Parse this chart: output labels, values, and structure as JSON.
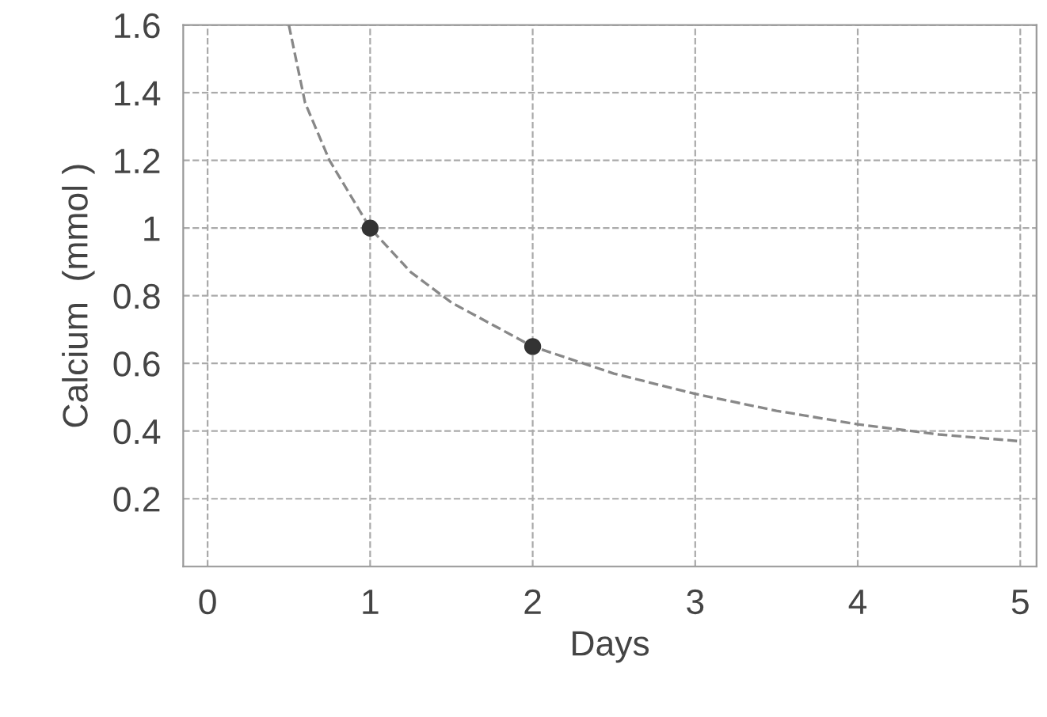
{
  "chart_data": {
    "type": "line",
    "xlabel": "Days",
    "ylabel": "Calcium  (mmol )",
    "series": [
      {
        "color": "#888888",
        "line_style": "dashed",
        "x": [
          0.5,
          0.6,
          0.75,
          1,
          1.25,
          1.5,
          2,
          2.5,
          3,
          3.5,
          4,
          4.5,
          5
        ],
        "values": [
          1.6,
          1.37,
          1.2,
          1.0,
          0.87,
          0.78,
          0.65,
          0.57,
          0.51,
          0.46,
          0.42,
          0.39,
          0.37
        ]
      },
      {
        "type": "scatter",
        "color": "#333333",
        "marker": "circle",
        "x": [
          1,
          2
        ],
        "values": [
          1.0,
          0.65
        ]
      }
    ],
    "xlim": [
      -0.15,
      5.1
    ],
    "ylim": [
      0,
      1.6
    ],
    "xticks": [
      0,
      1,
      2,
      3,
      4,
      5
    ],
    "yticks": [
      0.2,
      0.4,
      0.6,
      0.8,
      1,
      1.2,
      1.4,
      1.6
    ],
    "grid": true
  }
}
